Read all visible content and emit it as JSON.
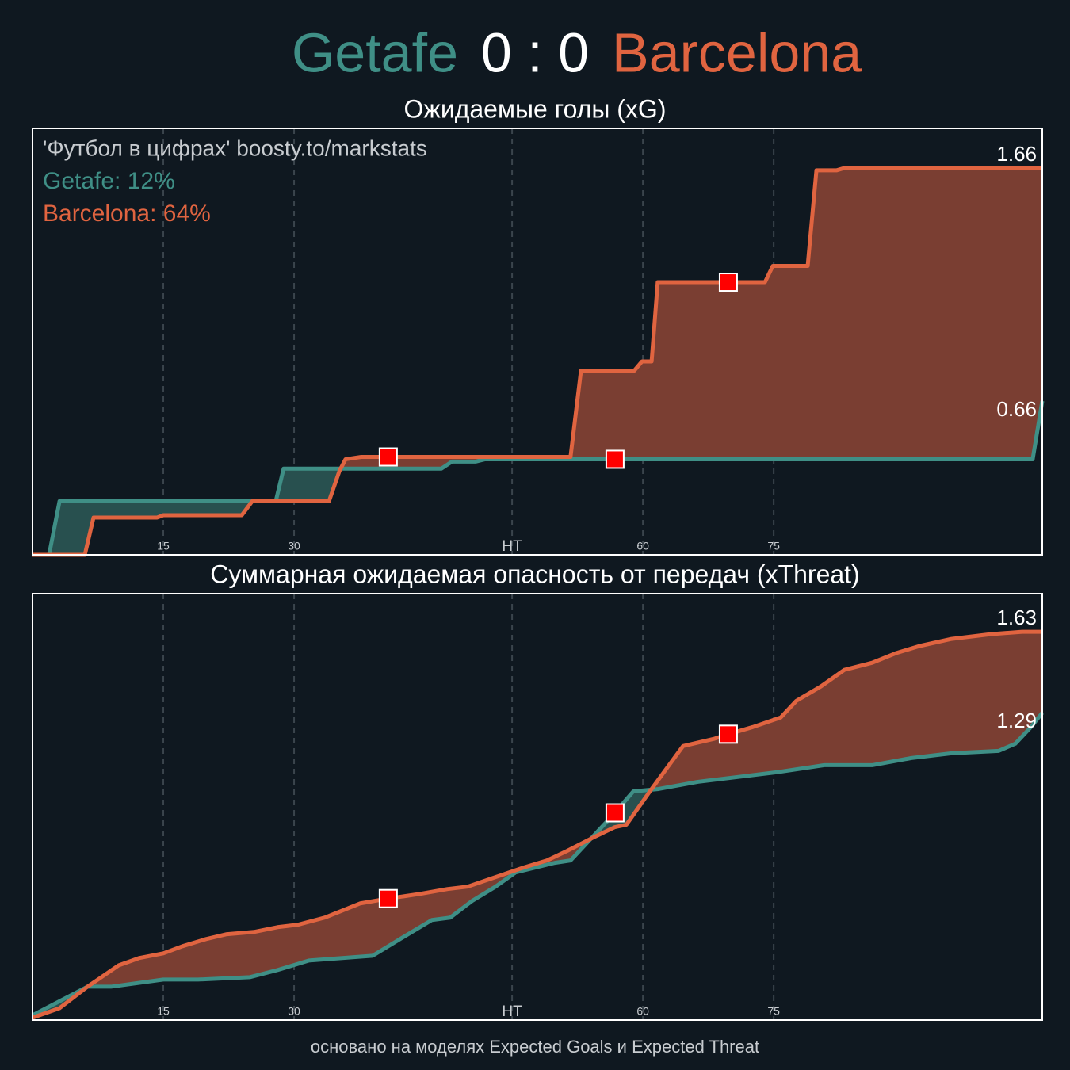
{
  "header": {
    "home": "Getafe",
    "score": "0 : 0",
    "away": "Barcelona"
  },
  "footer": "основано на моделях Expected Goals и Expected Threat",
  "chart_data": [
    {
      "type": "line",
      "title": "Ожидаемые голы (xG)",
      "annotations": [
        "'Футбол в цифрах' boosty.to/markstats",
        "Getafe: 12%",
        "Barcelona: 64%"
      ],
      "xlim": [
        0,
        115.8
      ],
      "ylim": [
        0,
        1.83
      ],
      "xticks": [
        15,
        30,
        {
          "value": 55,
          "label": "HT"
        },
        {
          "value": 70,
          "label": "60"
        },
        {
          "value": 85,
          "label": "75"
        }
      ],
      "grid": true,
      "series": [
        {
          "name": "Getafe",
          "color": "#3f8f86",
          "fill": "#28504f",
          "x": [
            0,
            1.9,
            3.1,
            27.9,
            28.8,
            46.9,
            48.1,
            50.8,
            51.9,
            114.7,
            115.8
          ],
          "values": [
            0,
            0,
            0.23,
            0.23,
            0.37,
            0.37,
            0.4,
            0.4,
            0.41,
            0.41,
            0.66
          ]
        },
        {
          "name": "Barcelona",
          "color": "#e06440",
          "fill": "#7a3e32",
          "x": [
            0,
            6.0,
            7.0,
            14.3,
            15,
            24,
            25.2,
            34,
            35.2,
            35.9,
            37.7,
            61.7,
            62.9,
            69,
            69.9,
            71,
            71.7,
            84,
            84.9,
            88.9,
            89.9,
            92.2,
            93.1,
            115.8
          ],
          "values": [
            0,
            0,
            0.16,
            0.16,
            0.17,
            0.17,
            0.23,
            0.23,
            0.36,
            0.41,
            0.42,
            0.42,
            0.79,
            0.79,
            0.83,
            0.83,
            1.17,
            1.17,
            1.24,
            1.24,
            1.65,
            1.65,
            1.66,
            1.66
          ]
        }
      ],
      "events": {
        "color": "#ff0000",
        "x": [
          40.8,
          66.8,
          79.8
        ],
        "values": [
          0.42,
          0.41,
          1.17
        ]
      }
    },
    {
      "type": "line",
      "title": "Суммарная ожидаемая опасность от передач (xThreat)",
      "xlim": [
        0,
        115.8
      ],
      "ylim": [
        0,
        1.79
      ],
      "xticks": [
        15,
        30,
        {
          "value": 55,
          "label": "HT"
        },
        {
          "value": 70,
          "label": "60"
        },
        {
          "value": 85,
          "label": "75"
        }
      ],
      "grid": true,
      "series": [
        {
          "name": "Getafe",
          "color": "#3f8f86",
          "fill": "#28504f",
          "x": [
            0,
            6.3,
            9,
            15,
            19,
            24.9,
            28.1,
            31.7,
            39,
            42.6,
            45.8,
            47.9,
            50.4,
            53.1,
            55.4,
            59.9,
            61.7,
            64,
            66.3,
            68.9,
            71.8,
            76.3,
            80.8,
            85.3,
            90.8,
            96.3,
            100.8,
            105.4,
            110.8,
            112.7,
            114.5,
            115.8
          ],
          "values": [
            0.02,
            0.14,
            0.14,
            0.17,
            0.17,
            0.18,
            0.21,
            0.25,
            0.27,
            0.35,
            0.42,
            0.43,
            0.5,
            0.56,
            0.62,
            0.66,
            0.67,
            0.76,
            0.85,
            0.96,
            0.97,
            1.0,
            1.02,
            1.04,
            1.07,
            1.07,
            1.1,
            1.12,
            1.13,
            1.16,
            1.23,
            1.29
          ]
        },
        {
          "name": "Barcelona",
          "color": "#e06440",
          "fill": "#7a3e32",
          "x": [
            0,
            3.1,
            6.3,
            9.9,
            12.2,
            15,
            17.2,
            19.9,
            22.2,
            25.4,
            28.1,
            30.4,
            33.5,
            37.6,
            40.8,
            44.5,
            47.6,
            49.9,
            53.1,
            56.3,
            59,
            61.3,
            64.5,
            66.8,
            68.1,
            70.8,
            74.6,
            78.1,
            79.8,
            82.6,
            85.8,
            87.6,
            90.4,
            93.1,
            96.3,
            99,
            101.7,
            105.4,
            109.9,
            113.5,
            115.8
          ],
          "values": [
            0.01,
            0.05,
            0.14,
            0.23,
            0.26,
            0.28,
            0.31,
            0.34,
            0.36,
            0.37,
            0.39,
            0.4,
            0.43,
            0.49,
            0.51,
            0.53,
            0.55,
            0.56,
            0.6,
            0.64,
            0.67,
            0.71,
            0.77,
            0.81,
            0.82,
            0.96,
            1.15,
            1.18,
            1.2,
            1.23,
            1.27,
            1.34,
            1.4,
            1.47,
            1.5,
            1.54,
            1.57,
            1.6,
            1.62,
            1.63,
            1.63
          ]
        }
      ],
      "events": {
        "color": "#ff0000",
        "x": [
          40.8,
          66.8,
          79.8
        ],
        "values": [
          0.51,
          0.87,
          1.2
        ]
      }
    }
  ]
}
